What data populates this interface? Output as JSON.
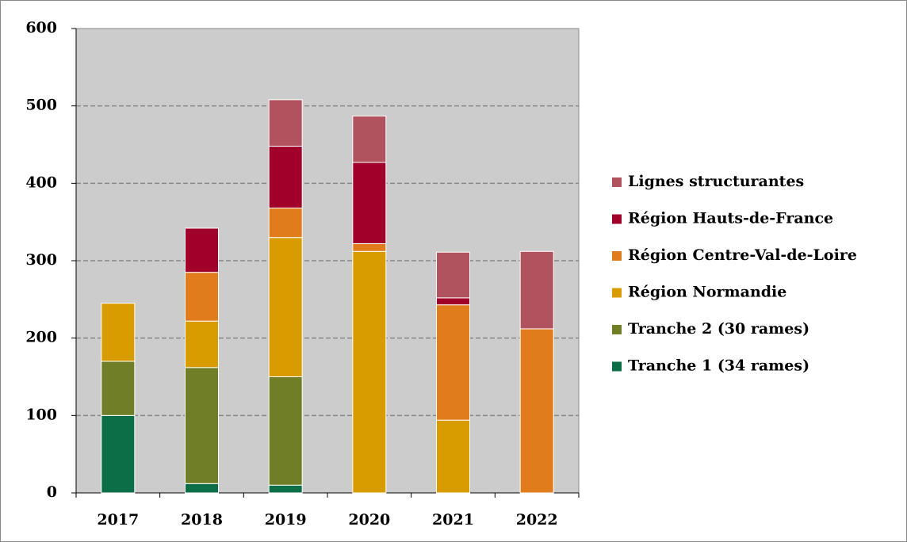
{
  "chart_data": {
    "type": "stacked_bar",
    "categories": [
      "2017",
      "2018",
      "2019",
      "2020",
      "2021",
      "2022"
    ],
    "series": [
      {
        "name": "Tranche 1 (34 rames)",
        "color": "#0b6e47",
        "values": [
          100,
          12,
          10,
          0,
          0,
          0
        ]
      },
      {
        "name": "Tranche 2 (30 rames)",
        "color": "#707f27",
        "values": [
          70,
          150,
          140,
          0,
          0,
          0
        ]
      },
      {
        "name": "Région Normandie",
        "color": "#d99c00",
        "values": [
          75,
          60,
          180,
          312,
          94,
          0
        ]
      },
      {
        "name": "Région Centre-Val-de-Loire",
        "color": "#e07c1b",
        "values": [
          0,
          63,
          38,
          10,
          149,
          212
        ]
      },
      {
        "name": "Région Hauts-de-France",
        "color": "#a1002b",
        "values": [
          0,
          57,
          80,
          105,
          9,
          0
        ]
      },
      {
        "name": "Lignes structurantes",
        "color": "#b0535f",
        "values": [
          0,
          0,
          60,
          60,
          59,
          100
        ]
      }
    ],
    "ylim": [
      0,
      600
    ],
    "yticks": [
      0,
      100,
      200,
      300,
      400,
      500,
      600
    ],
    "grid": true,
    "legend": "right"
  }
}
